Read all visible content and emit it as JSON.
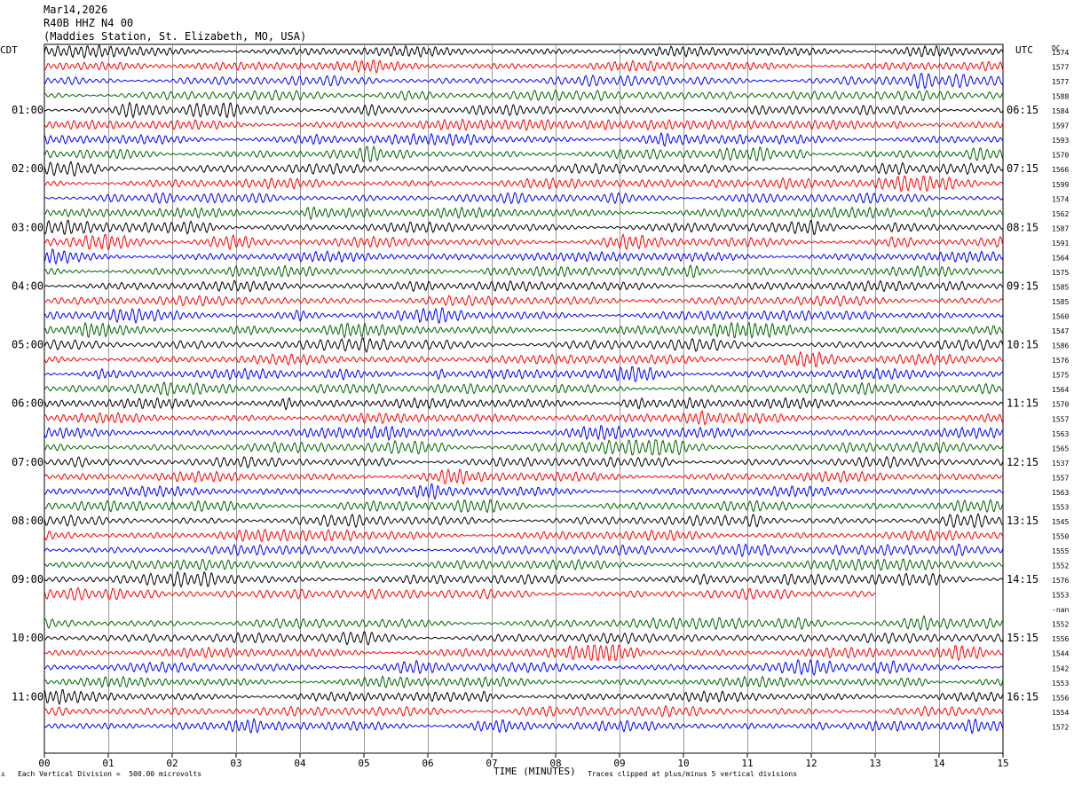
{
  "header": {
    "date": "Mar14,2026",
    "station_code": "R40B HHZ N4 00",
    "station_name": "(Maddies Station, St. Elizabeth, MO, USA)"
  },
  "left_zone": "CDT",
  "right_zone": "UTC",
  "dc_label": "DC",
  "footer": {
    "scale": "Each Vertical Division =  500.00 microvolts",
    "xlabel": "TIME (MINUTES)",
    "clip_note": "Traces clipped at plus/minus 5 vertical divisions"
  },
  "colors": {
    "trace_cycle": [
      "#000000",
      "#ff0000",
      "#0000ff",
      "#006400"
    ],
    "grid": "#999999"
  },
  "chart_data": {
    "type": "line",
    "x_ticks": [
      "00",
      "01",
      "02",
      "03",
      "04",
      "05",
      "06",
      "07",
      "08",
      "09",
      "10",
      "11",
      "12",
      "13",
      "14",
      "15"
    ],
    "xlim": [
      0,
      15
    ],
    "left_hour_labels": [
      "01:00",
      "02:00",
      "03:00",
      "04:00",
      "05:00",
      "06:00",
      "07:00",
      "08:00",
      "09:00",
      "10:00",
      "11:00"
    ],
    "right_hour_labels": [
      "06:15",
      "07:15",
      "08:15",
      "09:15",
      "10:15",
      "11:15",
      "12:15",
      "13:15",
      "14:15",
      "15:15",
      "16:15"
    ],
    "dc_offsets": [
      "1574",
      "1577",
      "1577",
      "1588",
      "1584",
      "1597",
      "1593",
      "1570",
      "1566",
      "1599",
      "1574",
      "1562",
      "1587",
      "1591",
      "1564",
      "1575",
      "1585",
      "1585",
      "1560",
      "1547",
      "1586",
      "1576",
      "1575",
      "1564",
      "1570",
      "1557",
      "1563",
      "1565",
      "1537",
      "1557",
      "1563",
      "1553",
      "1545",
      "1550",
      "1555",
      "1552",
      "1576",
      "1553",
      "-nan",
      "1552",
      "1556",
      "1544",
      "1542",
      "1553",
      "1556",
      "1554",
      "1572"
    ],
    "trace_count": 47,
    "partial_traces": [
      {
        "index": 37,
        "end_minute": 13.0
      },
      {
        "index": 38,
        "end_minute": 0
      }
    ]
  }
}
